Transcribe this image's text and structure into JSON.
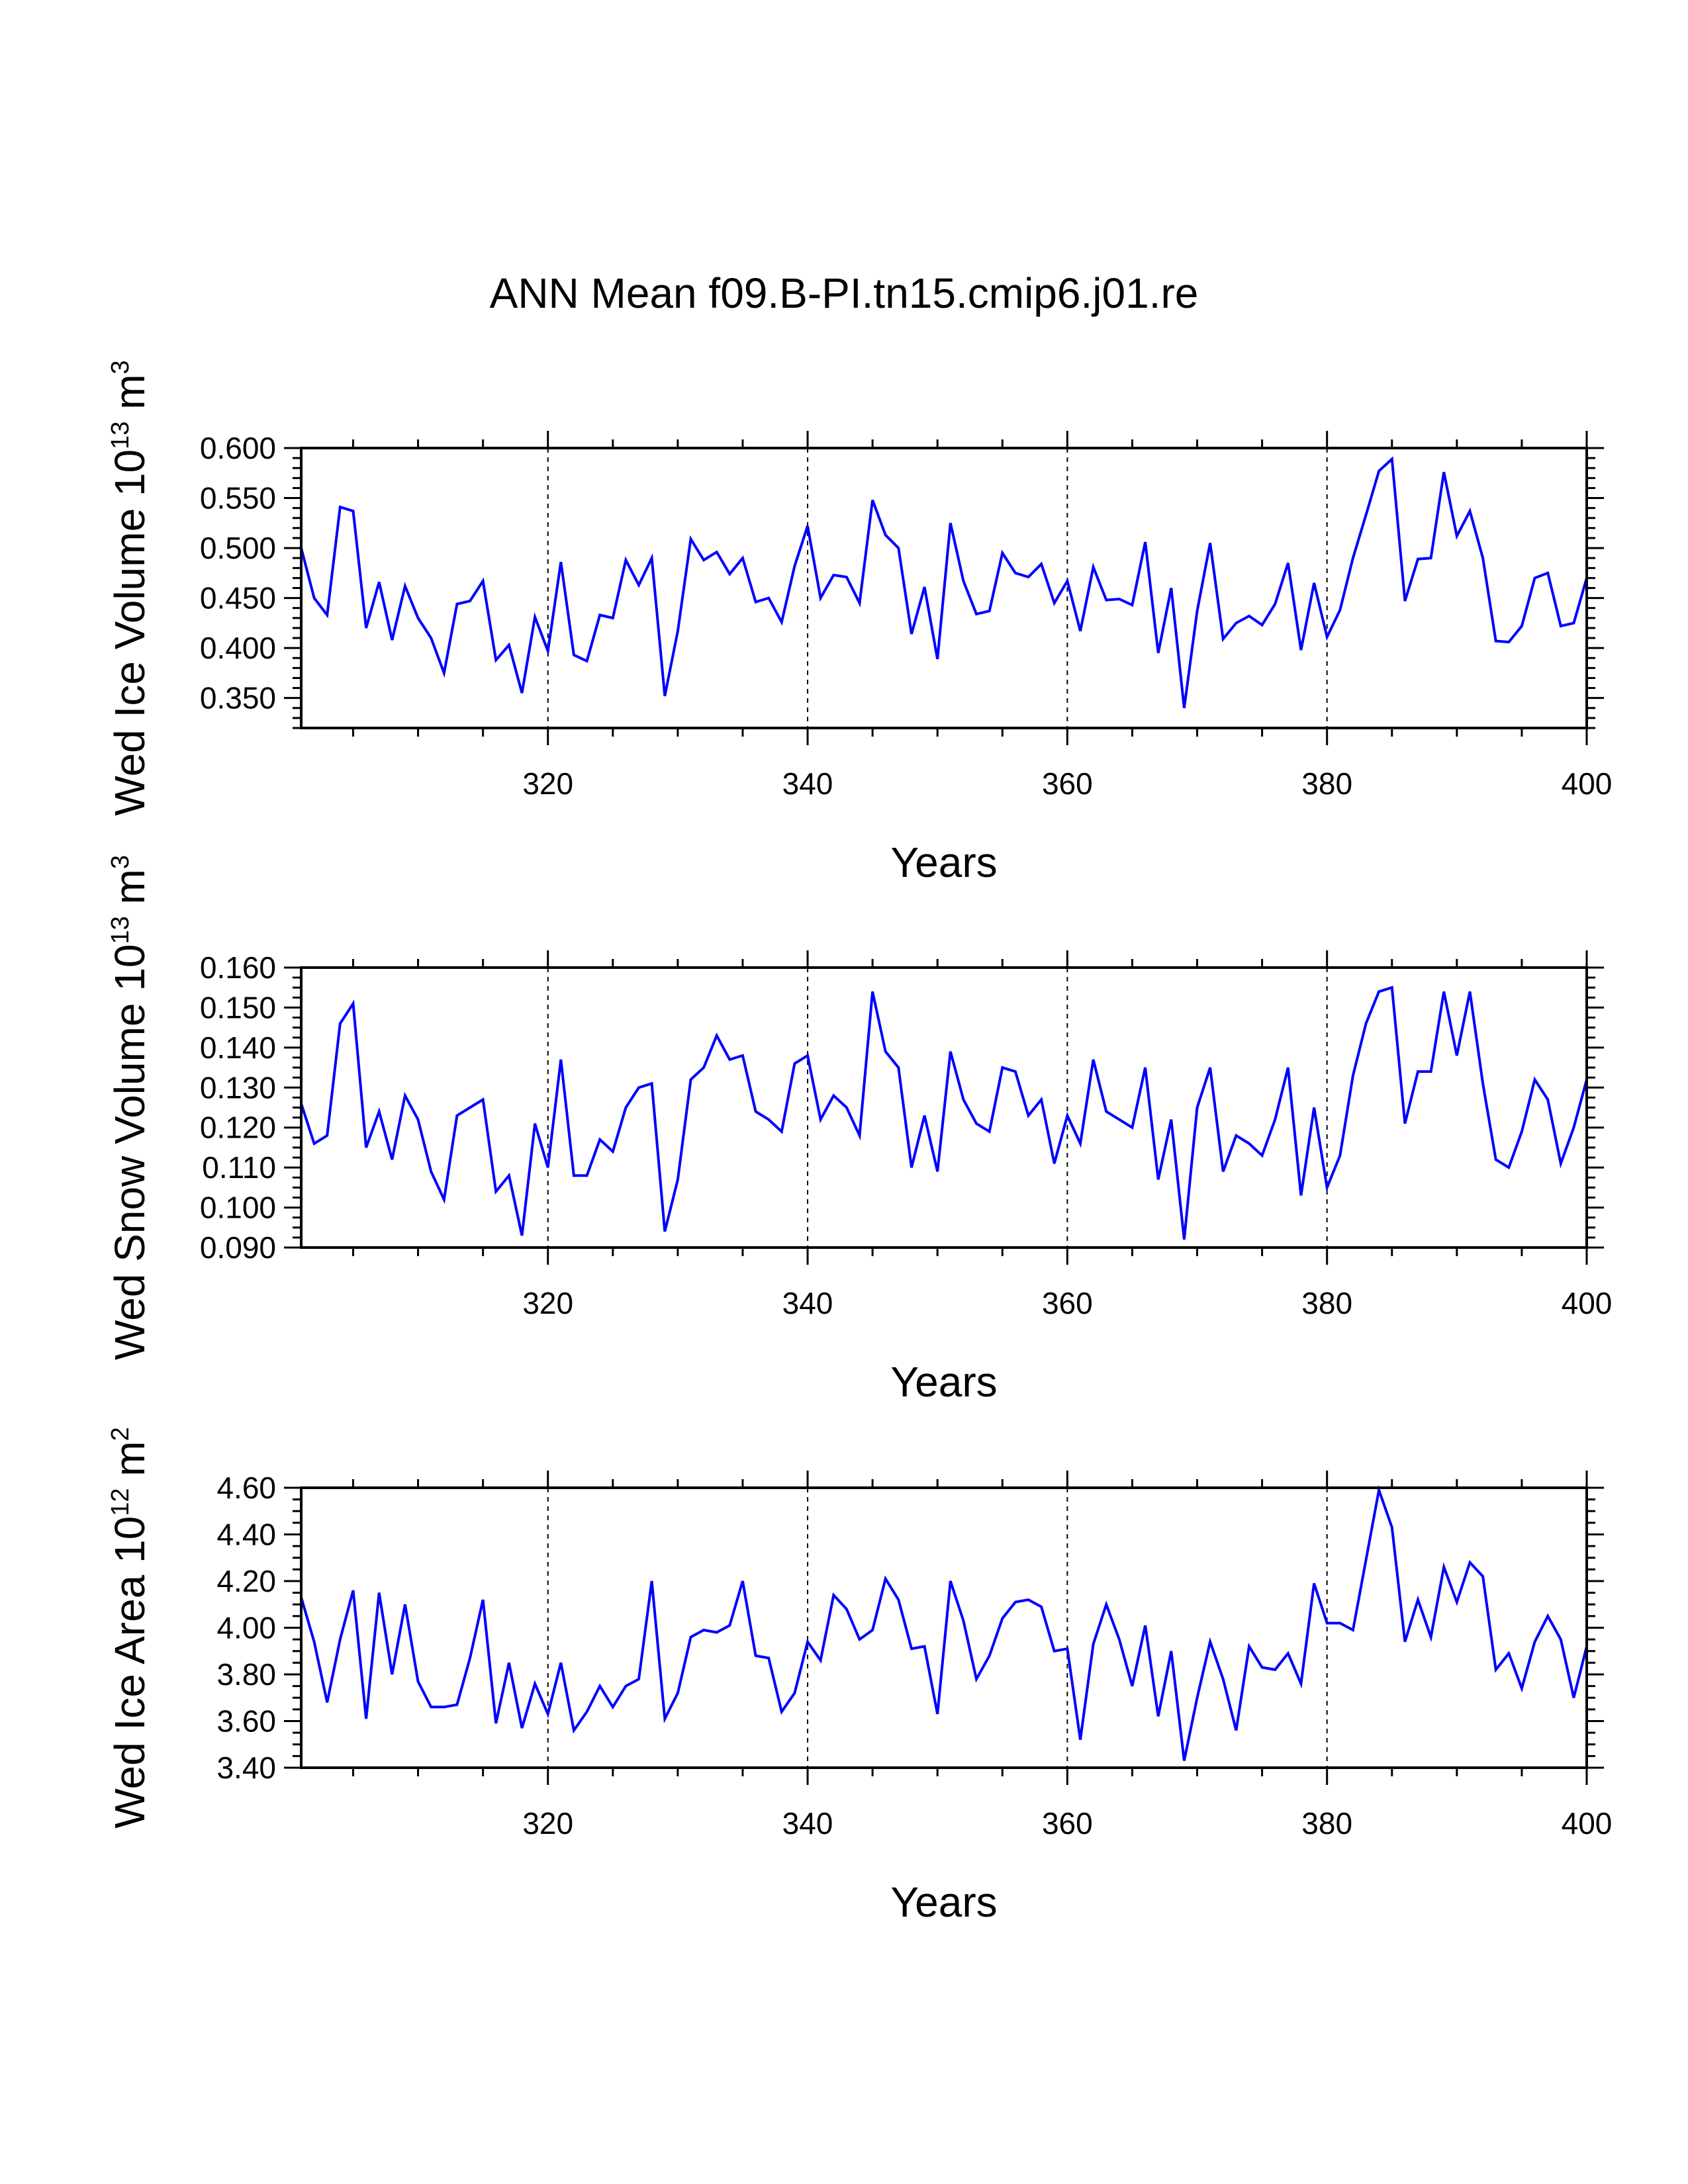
{
  "title": "ANN Mean f09.B-PI.tn15.cmip6.j01.re",
  "chart_data": [
    {
      "type": "line",
      "xlabel": "Years",
      "ylabel": {
        "pre": "Wed Ice Volume 10",
        "exp": "13",
        "unit": " m",
        "unit_exp": "3"
      },
      "xlim": [
        301,
        400
      ],
      "ylim": [
        0.32,
        0.6
      ],
      "xticks": [
        320,
        340,
        360,
        380,
        400
      ],
      "xtick_labels": [
        "320",
        "340",
        "360",
        "380",
        "400"
      ],
      "yticks": [
        0.35,
        0.4,
        0.45,
        0.5,
        0.55,
        0.6
      ],
      "ytick_labels": [
        "0.350",
        "0.400",
        "0.450",
        "0.500",
        "0.550",
        "0.600"
      ],
      "y_minor_step": 0.01,
      "x_minor_step": 5,
      "ref_lines_x": [
        320,
        340,
        360,
        380
      ],
      "line_color": "#0000ff",
      "x_start": 301,
      "values": [
        0.5,
        0.45,
        0.433,
        0.541,
        0.537,
        0.42,
        0.466,
        0.408,
        0.462,
        0.43,
        0.41,
        0.375,
        0.444,
        0.447,
        0.467,
        0.388,
        0.403,
        0.355,
        0.431,
        0.397,
        0.486,
        0.393,
        0.387,
        0.433,
        0.43,
        0.488,
        0.463,
        0.49,
        0.352,
        0.417,
        0.509,
        0.488,
        0.496,
        0.474,
        0.49,
        0.446,
        0.45,
        0.426,
        0.482,
        0.522,
        0.45,
        0.473,
        0.471,
        0.445,
        0.548,
        0.513,
        0.5,
        0.414,
        0.461,
        0.389,
        0.525,
        0.467,
        0.434,
        0.437,
        0.495,
        0.475,
        0.471,
        0.484,
        0.445,
        0.467,
        0.417,
        0.481,
        0.448,
        0.449,
        0.443,
        0.506,
        0.395,
        0.46,
        0.34,
        0.437,
        0.505,
        0.409,
        0.425,
        0.432,
        0.423,
        0.444,
        0.485,
        0.398,
        0.465,
        0.411,
        0.438,
        0.49,
        0.533,
        0.577,
        0.589,
        0.447,
        0.489,
        0.49,
        0.576,
        0.512,
        0.537,
        0.49,
        0.407,
        0.406,
        0.422,
        0.47,
        0.475,
        0.422,
        0.425,
        0.47
      ]
    },
    {
      "type": "line",
      "xlabel": "Years",
      "ylabel": {
        "pre": "Wed Snow Volume 10",
        "exp": "13",
        "unit": " m",
        "unit_exp": "3"
      },
      "xlim": [
        301,
        400
      ],
      "ylim": [
        0.09,
        0.16
      ],
      "xticks": [
        320,
        340,
        360,
        380,
        400
      ],
      "xtick_labels": [
        "320",
        "340",
        "360",
        "380",
        "400"
      ],
      "yticks": [
        0.09,
        0.1,
        0.11,
        0.12,
        0.13,
        0.14,
        0.15,
        0.16
      ],
      "ytick_labels": [
        "0.090",
        "0.100",
        "0.110",
        "0.120",
        "0.130",
        "0.140",
        "0.150",
        "0.160"
      ],
      "y_minor_step": 0.0025,
      "x_minor_step": 5,
      "ref_lines_x": [
        320,
        340,
        360,
        380
      ],
      "line_color": "#0000ff",
      "x_start": 301,
      "values": [
        0.126,
        0.116,
        0.118,
        0.146,
        0.151,
        0.115,
        0.124,
        0.112,
        0.128,
        0.122,
        0.109,
        0.102,
        0.123,
        0.125,
        0.127,
        0.104,
        0.108,
        0.093,
        0.121,
        0.11,
        0.137,
        0.108,
        0.108,
        0.117,
        0.114,
        0.125,
        0.13,
        0.131,
        0.094,
        0.107,
        0.132,
        0.135,
        0.143,
        0.137,
        0.138,
        0.124,
        0.122,
        0.119,
        0.136,
        0.138,
        0.122,
        0.128,
        0.125,
        0.118,
        0.154,
        0.139,
        0.135,
        0.11,
        0.123,
        0.109,
        0.139,
        0.127,
        0.121,
        0.119,
        0.135,
        0.134,
        0.123,
        0.127,
        0.111,
        0.123,
        0.116,
        0.137,
        0.124,
        0.122,
        0.12,
        0.135,
        0.107,
        0.122,
        0.092,
        0.125,
        0.135,
        0.109,
        0.118,
        0.116,
        0.113,
        0.122,
        0.135,
        0.103,
        0.125,
        0.105,
        0.113,
        0.133,
        0.146,
        0.154,
        0.155,
        0.121,
        0.134,
        0.134,
        0.154,
        0.138,
        0.154,
        0.131,
        0.112,
        0.11,
        0.119,
        0.132,
        0.127,
        0.111,
        0.12,
        0.132
      ]
    },
    {
      "type": "line",
      "xlabel": "Years",
      "ylabel": {
        "pre": "Wed Ice Area 10",
        "exp": "12",
        "unit": " m",
        "unit_exp": "2"
      },
      "xlim": [
        301,
        400
      ],
      "ylim": [
        3.4,
        4.6
      ],
      "xticks": [
        320,
        340,
        360,
        380,
        400
      ],
      "xtick_labels": [
        "320",
        "340",
        "360",
        "380",
        "400"
      ],
      "yticks": [
        3.4,
        3.6,
        3.8,
        4.0,
        4.2,
        4.4,
        4.6
      ],
      "ytick_labels": [
        "3.40",
        "3.60",
        "3.80",
        "4.00",
        "4.20",
        "4.40",
        "4.60"
      ],
      "y_minor_step": 0.05,
      "x_minor_step": 5,
      "ref_lines_x": [
        320,
        340,
        360,
        380
      ],
      "line_color": "#0000ff",
      "x_start": 301,
      "values": [
        4.13,
        3.94,
        3.68,
        3.95,
        4.16,
        3.61,
        4.15,
        3.8,
        4.1,
        3.77,
        3.66,
        3.66,
        3.67,
        3.87,
        4.12,
        3.59,
        3.85,
        3.57,
        3.76,
        3.63,
        3.85,
        3.56,
        3.64,
        3.75,
        3.66,
        3.75,
        3.78,
        4.2,
        3.61,
        3.72,
        3.96,
        3.99,
        3.98,
        4.01,
        4.2,
        3.88,
        3.87,
        3.64,
        3.72,
        3.94,
        3.86,
        4.14,
        4.08,
        3.95,
        3.99,
        4.21,
        4.12,
        3.91,
        3.92,
        3.63,
        4.2,
        4.03,
        3.78,
        3.88,
        4.04,
        4.11,
        4.12,
        4.09,
        3.9,
        3.91,
        3.52,
        3.93,
        4.1,
        3.95,
        3.75,
        4.01,
        3.62,
        3.9,
        3.43,
        3.7,
        3.94,
        3.78,
        3.56,
        3.92,
        3.83,
        3.82,
        3.89,
        3.76,
        4.19,
        4.02,
        4.02,
        3.99,
        4.29,
        4.59,
        4.43,
        3.94,
        4.12,
        3.96,
        4.26,
        4.11,
        4.28,
        4.22,
        3.82,
        3.89,
        3.74,
        3.94,
        4.05,
        3.95,
        3.7,
        3.92
      ]
    }
  ]
}
